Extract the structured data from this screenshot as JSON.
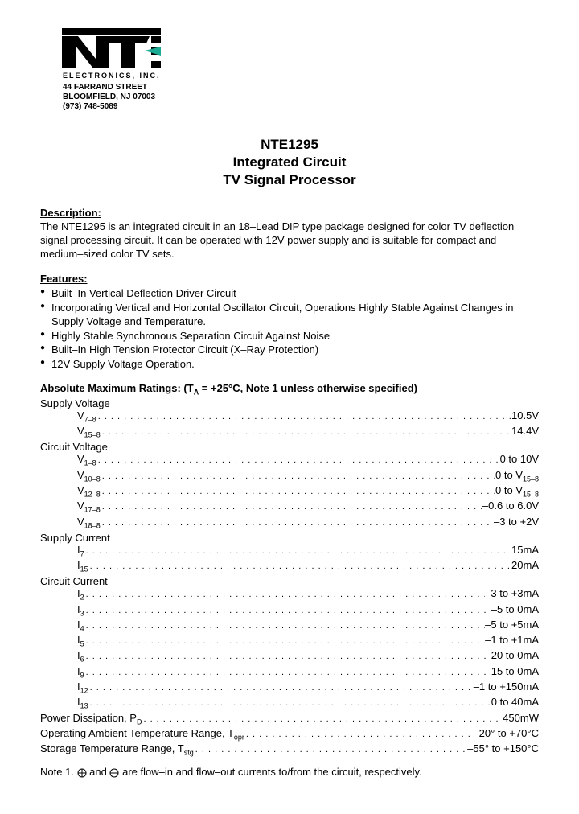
{
  "logo": {
    "company_subline": "ELECTRONICS, INC.",
    "address_line1": "44 FARRAND STREET",
    "address_line2": "BLOOMFIELD, NJ 07003",
    "phone": "(973) 748-5089"
  },
  "title": {
    "line1": "NTE1295",
    "line2": "Integrated Circuit",
    "line3": "TV Signal Processor"
  },
  "description": {
    "heading": "Description:",
    "text": "The NTE1295 is an integrated circuit in an 18–Lead DIP type package designed for color TV deflection signal processing circuit. It can be operated with 12V power supply and is suitable for compact and medium–sized color TV sets."
  },
  "features": {
    "heading": "Features:",
    "items": [
      "Built–In Vertical Deflection Driver Circuit",
      "Incorporating Vertical and Horizontal Oscillator Circuit, Operations Highly Stable Against Changes in Supply Voltage and Temperature.",
      "Highly Stable Synchronous Separation Circuit Against Noise",
      "Built–In High Tension Protector Circuit (X–Ray Protection)",
      "12V Supply Voltage Operation."
    ]
  },
  "ratings": {
    "heading_bold": "Absolute Maximum Ratings:",
    "heading_rest": "  (T",
    "heading_sub": "A",
    "heading_tail": " = +25°C, Note 1 unless otherwise specified)",
    "groups": [
      {
        "label": "Supply Voltage",
        "items": [
          {
            "label_html": "V<span class=\"sub\">7–8</span>",
            "value": "10.5V"
          },
          {
            "label_html": "V<span class=\"sub\">15–8</span>",
            "value": "14.4V"
          }
        ]
      },
      {
        "label": "Circuit Voltage",
        "items": [
          {
            "label_html": "V<span class=\"sub\">1–8</span>",
            "value": "0 to 10V"
          },
          {
            "label_html": "V<span class=\"sub\">10–8</span>",
            "value": "0 to V<span class=\"sub\">15–8</span>"
          },
          {
            "label_html": "V<span class=\"sub\">12–8</span>",
            "value": "0 to V<span class=\"sub\">15–8</span>"
          },
          {
            "label_html": "V<span class=\"sub\">17–8</span>",
            "value": "–0.6 to 6.0V"
          },
          {
            "label_html": "V<span class=\"sub\">18–8</span>",
            "value": "–3 to +2V"
          }
        ]
      },
      {
        "label": "Supply Current",
        "items": [
          {
            "label_html": "I<span class=\"sub\">7</span>",
            "value": "15mA"
          },
          {
            "label_html": "I<span class=\"sub\">15</span>",
            "value": "20mA"
          }
        ]
      },
      {
        "label": "Circuit Current",
        "items": [
          {
            "label_html": "I<span class=\"sub\">2</span>",
            "value": "–3 to +3mA"
          },
          {
            "label_html": "I<span class=\"sub\">3</span>",
            "value": "–5 to 0mA"
          },
          {
            "label_html": "I<span class=\"sub\">4</span>",
            "value": "–5 to +5mA"
          },
          {
            "label_html": "I<span class=\"sub\">5</span>",
            "value": "–1 to +1mA"
          },
          {
            "label_html": "I<span class=\"sub\">6</span>",
            "value": "–20 to 0mA"
          },
          {
            "label_html": "I<span class=\"sub\">9</span>",
            "value": "–15 to 0mA"
          },
          {
            "label_html": "I<span class=\"sub\">12</span>",
            "value": "–1 to +150mA"
          },
          {
            "label_html": "I<span class=\"sub\">13</span>",
            "value": "0 to 40mA"
          }
        ]
      }
    ],
    "single_lines": [
      {
        "label_html": "Power Dissipation, P<span class=\"sub\">D</span>",
        "value": "450mW"
      },
      {
        "label_html": "Operating Ambient Temperature Range, T<span class=\"sub\">opr</span>",
        "value": "–20° to +70°C"
      },
      {
        "label_html": "Storage Temperature Range, T<span class=\"sub\">stg</span>",
        "value": "–55° to +150°C"
      }
    ]
  },
  "note": {
    "prefix": "Note  1.  ",
    "tail": " are flow–in and flow–out currents to/from the circuit, respectively."
  },
  "colors": {
    "teal": "#1aa993",
    "black": "#000000"
  }
}
